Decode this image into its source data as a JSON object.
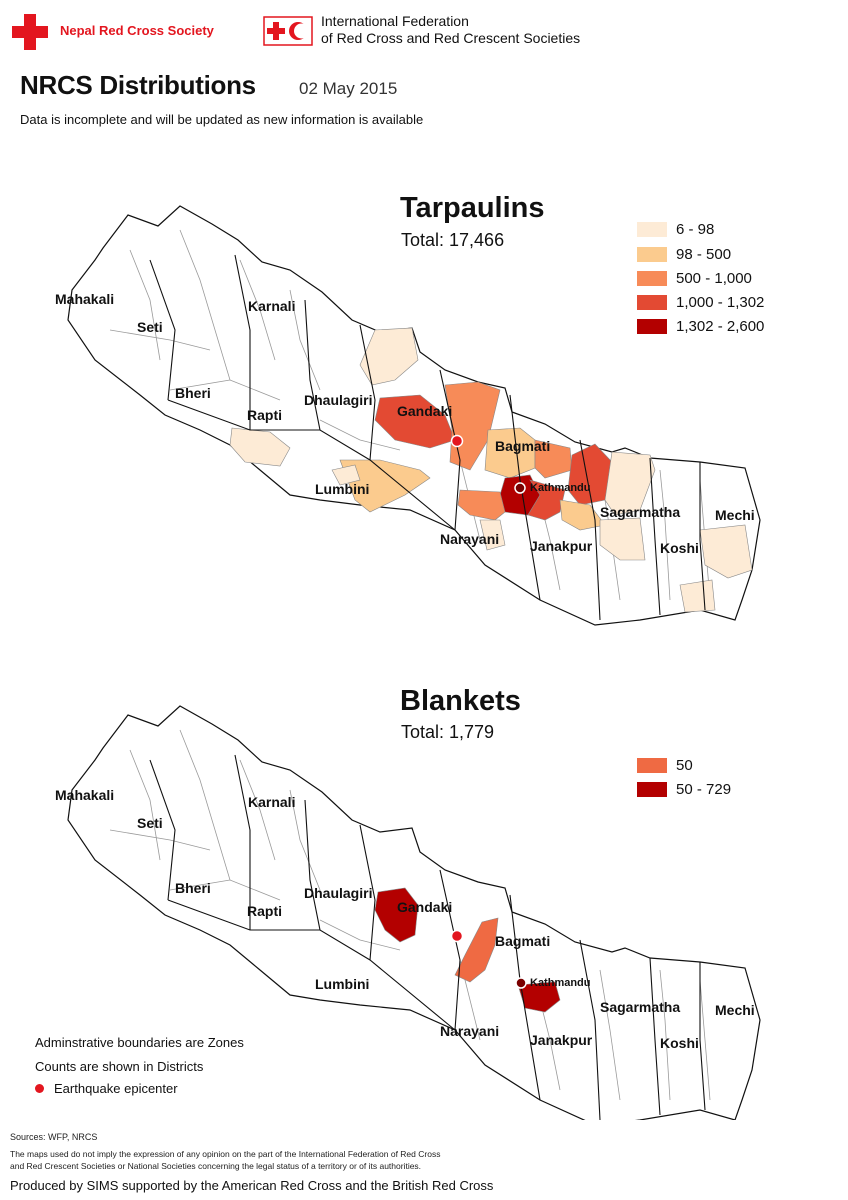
{
  "header": {
    "nrcs_name": "Nepal Red Cross Society",
    "ifrc_line1": "International Federation",
    "ifrc_line2": "of Red Cross and Red Crescent Societies",
    "brand_red": "#e3161f"
  },
  "title": "NRCS Distributions",
  "date": "02 May 2015",
  "subtitle": "Data is incomplete and will be updated as new information is available",
  "maps": [
    {
      "title": "Tarpaulins",
      "total": "Total: 17,466",
      "legend": [
        {
          "label": "6 - 98",
          "color": "#fdebd6"
        },
        {
          "label": "98 - 500",
          "color": "#fbcb8e"
        },
        {
          "label": "500 - 1,000",
          "color": "#f78b58"
        },
        {
          "label": "1,000 - 1,302",
          "color": "#e34a33"
        },
        {
          "label": "1,302 - 2,600",
          "color": "#b30000"
        }
      ]
    },
    {
      "title": "Blankets",
      "total": "Total: 1,779",
      "legend": [
        {
          "label": "50",
          "color": "#ef6a43"
        },
        {
          "label": "50 - 729",
          "color": "#b30000"
        }
      ]
    }
  ],
  "zones": [
    "Mahakali",
    "Seti",
    "Karnali",
    "Bheri",
    "Rapti",
    "Dhaulagiri",
    "Gandaki",
    "Bagmati",
    "Lumbini",
    "Narayani",
    "Janakpur",
    "Sagarmatha",
    "Koshi",
    "Mechi"
  ],
  "city": "Kathmandu",
  "notes": {
    "boundaries": "Adminstrative boundaries are Zones",
    "counts": "Counts are shown in Districts",
    "epicenter": "Earthquake epicenter",
    "epicenter_color": "#e3161f"
  },
  "footer": {
    "sources": "Sources: WFP, NRCS",
    "disclaimer_1": "The maps used do not imply the expression of any opinion on the part of the International Federation of Red Cross",
    "disclaimer_2": "and Red Crescent Societies or National Societies concerning the legal status of a territory or of its authorities.",
    "produced": "Produced by SIMS supported by the American Red Cross and the British Red Cross"
  }
}
